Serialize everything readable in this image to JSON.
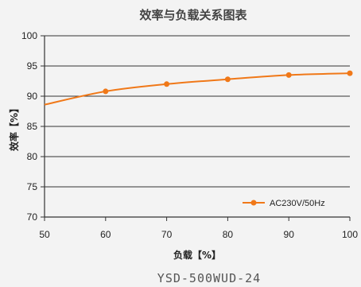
{
  "chart_data": {
    "type": "line",
    "title": "效率与负载关系图表",
    "xlabel": "负载【%】",
    "ylabel": "效率【%】",
    "xlim": [
      50,
      100
    ],
    "ylim": [
      70,
      100
    ],
    "x_ticks": [
      50,
      60,
      70,
      80,
      90,
      100
    ],
    "y_ticks": [
      70,
      75,
      80,
      85,
      90,
      95,
      100
    ],
    "grid": "horizontal",
    "legend_position": "bottom-right",
    "series": [
      {
        "name": "AC230V/50Hz",
        "color": "#f07818",
        "x": [
          50,
          60,
          70,
          80,
          90,
          100
        ],
        "y": [
          88.6,
          90.8,
          92.0,
          92.8,
          93.5,
          93.8
        ],
        "markers_at": [
          60,
          70,
          80,
          90,
          100
        ]
      }
    ]
  },
  "footer": {
    "model": "YSD-500WUD-24"
  }
}
